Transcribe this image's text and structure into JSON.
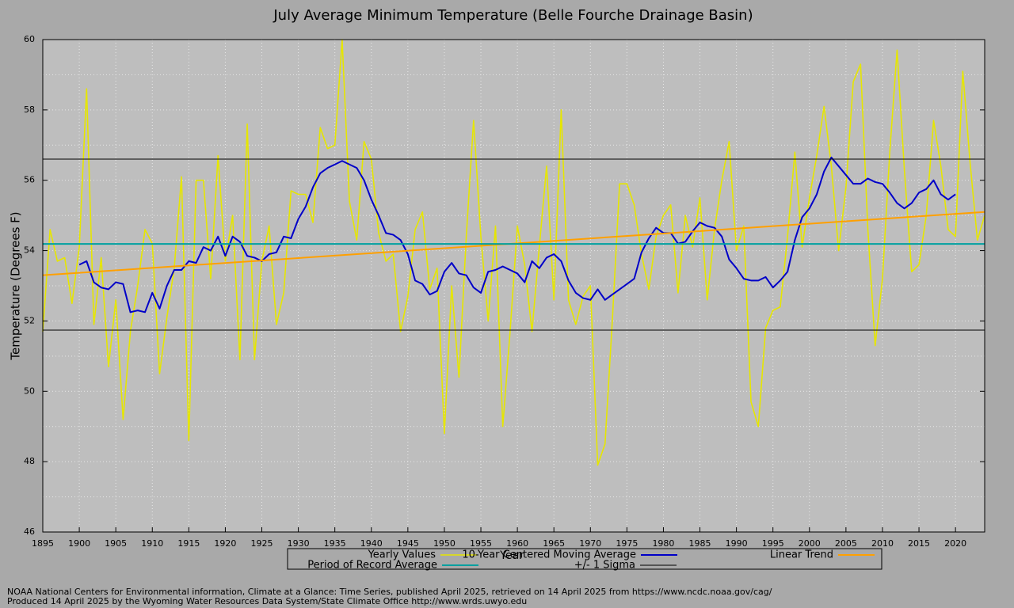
{
  "chart_data": {
    "type": "line",
    "title": "July Average Minimum Temperature (Belle Fourche Drainage Basin)",
    "x_label": "Year",
    "y_label": "Temperature (Degrees F)",
    "xlim": [
      1895,
      2024
    ],
    "xticks": [
      1895,
      1900,
      1905,
      1910,
      1915,
      1920,
      1925,
      1930,
      1935,
      1940,
      1945,
      1950,
      1955,
      1960,
      1965,
      1970,
      1975,
      1980,
      1985,
      1990,
      1995,
      2000,
      2005,
      2010,
      2015,
      2020
    ],
    "ylim": [
      46,
      60
    ],
    "yticks": [
      46,
      48,
      50,
      52,
      54,
      56,
      58,
      60
    ],
    "yminor_ticks": [
      47,
      49,
      51,
      53,
      55,
      57,
      59
    ],
    "grid": true,
    "series": [
      {
        "name": "Yearly Values",
        "color": "#e6e600",
        "x": [
          1895,
          1896,
          1897,
          1898,
          1899,
          1900,
          1901,
          1902,
          1903,
          1904,
          1905,
          1906,
          1907,
          1908,
          1909,
          1910,
          1911,
          1912,
          1913,
          1914,
          1915,
          1916,
          1917,
          1918,
          1919,
          1920,
          1921,
          1922,
          1923,
          1924,
          1925,
          1926,
          1927,
          1928,
          1929,
          1930,
          1931,
          1932,
          1933,
          1934,
          1935,
          1936,
          1937,
          1938,
          1939,
          1940,
          1941,
          1942,
          1943,
          1944,
          1945,
          1946,
          1947,
          1948,
          1949,
          1950,
          1951,
          1952,
          1953,
          1954,
          1955,
          1956,
          1957,
          1958,
          1959,
          1960,
          1961,
          1962,
          1963,
          1964,
          1965,
          1966,
          1967,
          1968,
          1969,
          1970,
          1971,
          1972,
          1973,
          1974,
          1975,
          1976,
          1977,
          1978,
          1979,
          1980,
          1981,
          1982,
          1983,
          1984,
          1985,
          1986,
          1987,
          1988,
          1989,
          1990,
          1991,
          1992,
          1993,
          1994,
          1995,
          1996,
          1997,
          1998,
          1999,
          2000,
          2001,
          2002,
          2003,
          2004,
          2005,
          2006,
          2007,
          2008,
          2009,
          2010,
          2011,
          2012,
          2013,
          2014,
          2015,
          2016,
          2017,
          2018,
          2019,
          2020,
          2021,
          2022,
          2023,
          2024
        ],
        "values": [
          51.7,
          54.6,
          53.7,
          53.8,
          52.5,
          54.1,
          58.6,
          51.9,
          53.8,
          50.7,
          52.6,
          49.2,
          51.7,
          53.0,
          54.6,
          54.2,
          50.5,
          52.1,
          53.5,
          56.1,
          48.6,
          56.0,
          56.0,
          53.2,
          56.7,
          53.7,
          55.0,
          50.9,
          57.6,
          50.9,
          53.7,
          54.7,
          51.9,
          52.8,
          55.7,
          55.6,
          55.6,
          54.8,
          57.5,
          56.9,
          57.0,
          60.0,
          55.4,
          54.3,
          57.1,
          56.6,
          54.5,
          53.7,
          53.9,
          51.7,
          52.7,
          54.6,
          55.1,
          52.9,
          53.5,
          48.8,
          53.0,
          50.4,
          54.4,
          57.7,
          54.4,
          52.0,
          54.7,
          49.0,
          51.7,
          54.7,
          53.6,
          51.7,
          54.1,
          56.4,
          52.6,
          58.0,
          52.6,
          51.9,
          52.7,
          53.0,
          47.9,
          48.5,
          52.0,
          55.9,
          55.9,
          55.3,
          53.9,
          52.9,
          54.4,
          55.0,
          55.3,
          52.8,
          55.0,
          54.1,
          55.5,
          52.6,
          54.6,
          56.0,
          57.1,
          54.0,
          54.7,
          49.7,
          49.0,
          51.8,
          52.3,
          52.4,
          54.4,
          56.8,
          54.1,
          55.5,
          56.7,
          58.1,
          56.4,
          54.0,
          55.8,
          58.8,
          59.3,
          54.6,
          51.3,
          53.2,
          56.8,
          59.7,
          56.3,
          53.4,
          53.6,
          55.0,
          57.7,
          56.4,
          54.6,
          54.4,
          59.1,
          56.5,
          54.3,
          55.0
        ]
      },
      {
        "name": "10-Year Centered Moving Average",
        "color": "#0000c8",
        "x": [
          1900,
          1901,
          1902,
          1903,
          1904,
          1905,
          1906,
          1907,
          1908,
          1909,
          1910,
          1911,
          1912,
          1913,
          1914,
          1915,
          1916,
          1917,
          1918,
          1919,
          1920,
          1921,
          1922,
          1923,
          1924,
          1925,
          1926,
          1927,
          1928,
          1929,
          1930,
          1931,
          1932,
          1933,
          1934,
          1935,
          1936,
          1937,
          1938,
          1939,
          1940,
          1941,
          1942,
          1943,
          1944,
          1945,
          1946,
          1947,
          1948,
          1949,
          1950,
          1951,
          1952,
          1953,
          1954,
          1955,
          1956,
          1957,
          1958,
          1959,
          1960,
          1961,
          1962,
          1963,
          1964,
          1965,
          1966,
          1967,
          1968,
          1969,
          1970,
          1971,
          1972,
          1973,
          1974,
          1975,
          1976,
          1977,
          1978,
          1979,
          1980,
          1981,
          1982,
          1983,
          1984,
          1985,
          1986,
          1987,
          1988,
          1989,
          1990,
          1991,
          1992,
          1993,
          1994,
          1995,
          1996,
          1997,
          1998,
          1999,
          2000,
          2001,
          2002,
          2003,
          2004,
          2005,
          2006,
          2007,
          2008,
          2009,
          2010,
          2011,
          2012,
          2013,
          2014,
          2015,
          2016,
          2017,
          2018,
          2019,
          2020
        ],
        "values": [
          53.6,
          53.7,
          53.1,
          52.95,
          52.9,
          53.1,
          53.05,
          52.25,
          52.3,
          52.25,
          52.8,
          52.35,
          53.0,
          53.45,
          53.45,
          53.7,
          53.65,
          54.1,
          54.0,
          54.4,
          53.85,
          54.4,
          54.25,
          53.85,
          53.8,
          53.7,
          53.9,
          53.95,
          54.4,
          54.35,
          54.9,
          55.25,
          55.8,
          56.2,
          56.35,
          56.45,
          56.55,
          56.45,
          56.35,
          56.0,
          55.45,
          55.0,
          54.5,
          54.45,
          54.3,
          53.9,
          53.15,
          53.05,
          52.75,
          52.85,
          53.4,
          53.65,
          53.35,
          53.3,
          52.95,
          52.8,
          53.4,
          53.45,
          53.55,
          53.45,
          53.35,
          53.1,
          53.7,
          53.5,
          53.8,
          53.9,
          53.7,
          53.15,
          52.8,
          52.65,
          52.6,
          52.9,
          52.6,
          52.75,
          52.9,
          53.05,
          53.2,
          53.95,
          54.35,
          54.65,
          54.5,
          54.5,
          54.2,
          54.25,
          54.55,
          54.8,
          54.7,
          54.65,
          54.4,
          53.75,
          53.5,
          53.2,
          53.15,
          53.15,
          53.25,
          52.95,
          53.15,
          53.4,
          54.3,
          54.95,
          55.2,
          55.6,
          56.25,
          56.65,
          56.4,
          56.15,
          55.9,
          55.9,
          56.05,
          55.95,
          55.9,
          55.65,
          55.35,
          55.2,
          55.35,
          55.65,
          55.75,
          56.0,
          55.6,
          55.45,
          55.6
        ]
      },
      {
        "name": "Linear Trend",
        "color": "#ffa000",
        "x": [
          1895,
          2024
        ],
        "values": [
          53.3,
          55.1
        ]
      },
      {
        "name": "Period of Record Average",
        "color": "#00a0a0",
        "x": [
          1895,
          2024
        ],
        "values": [
          54.19,
          54.19
        ]
      },
      {
        "name": "+/- 1 Sigma",
        "color": "#000000",
        "levels": [
          56.6,
          51.74
        ]
      }
    ],
    "footer": [
      "NOAA National Centers for Environmental information, Climate at a Glance: Time Series, published April 2025, retrieved on 14 April 2025 from https://www.ncdc.noaa.gov/cag/",
      "Produced 14 April 2025 by the Wyoming Water Resources Data System/State Climate Office http://www.wrds.uwyo.edu"
    ]
  }
}
